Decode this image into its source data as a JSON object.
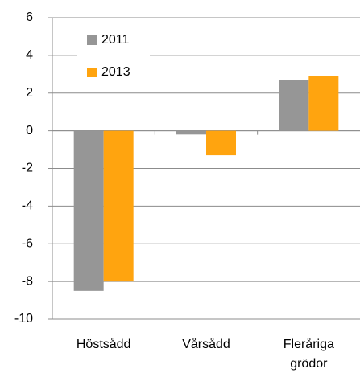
{
  "chart_data": {
    "type": "bar",
    "categories": [
      "Höstsådd",
      "Vårsådd",
      "Fleråriga grödor"
    ],
    "series": [
      {
        "name": "2011",
        "color": "#969696",
        "values": [
          -8.5,
          -0.2,
          2.7
        ]
      },
      {
        "name": "2013",
        "color": "#ffa40f",
        "values": [
          -8.0,
          -1.3,
          2.9
        ]
      }
    ],
    "ylim": [
      -10,
      6
    ],
    "yticks": [
      -10,
      -8,
      -6,
      -4,
      -2,
      0,
      2,
      4,
      6
    ],
    "grid": true,
    "legend": "upper left"
  }
}
